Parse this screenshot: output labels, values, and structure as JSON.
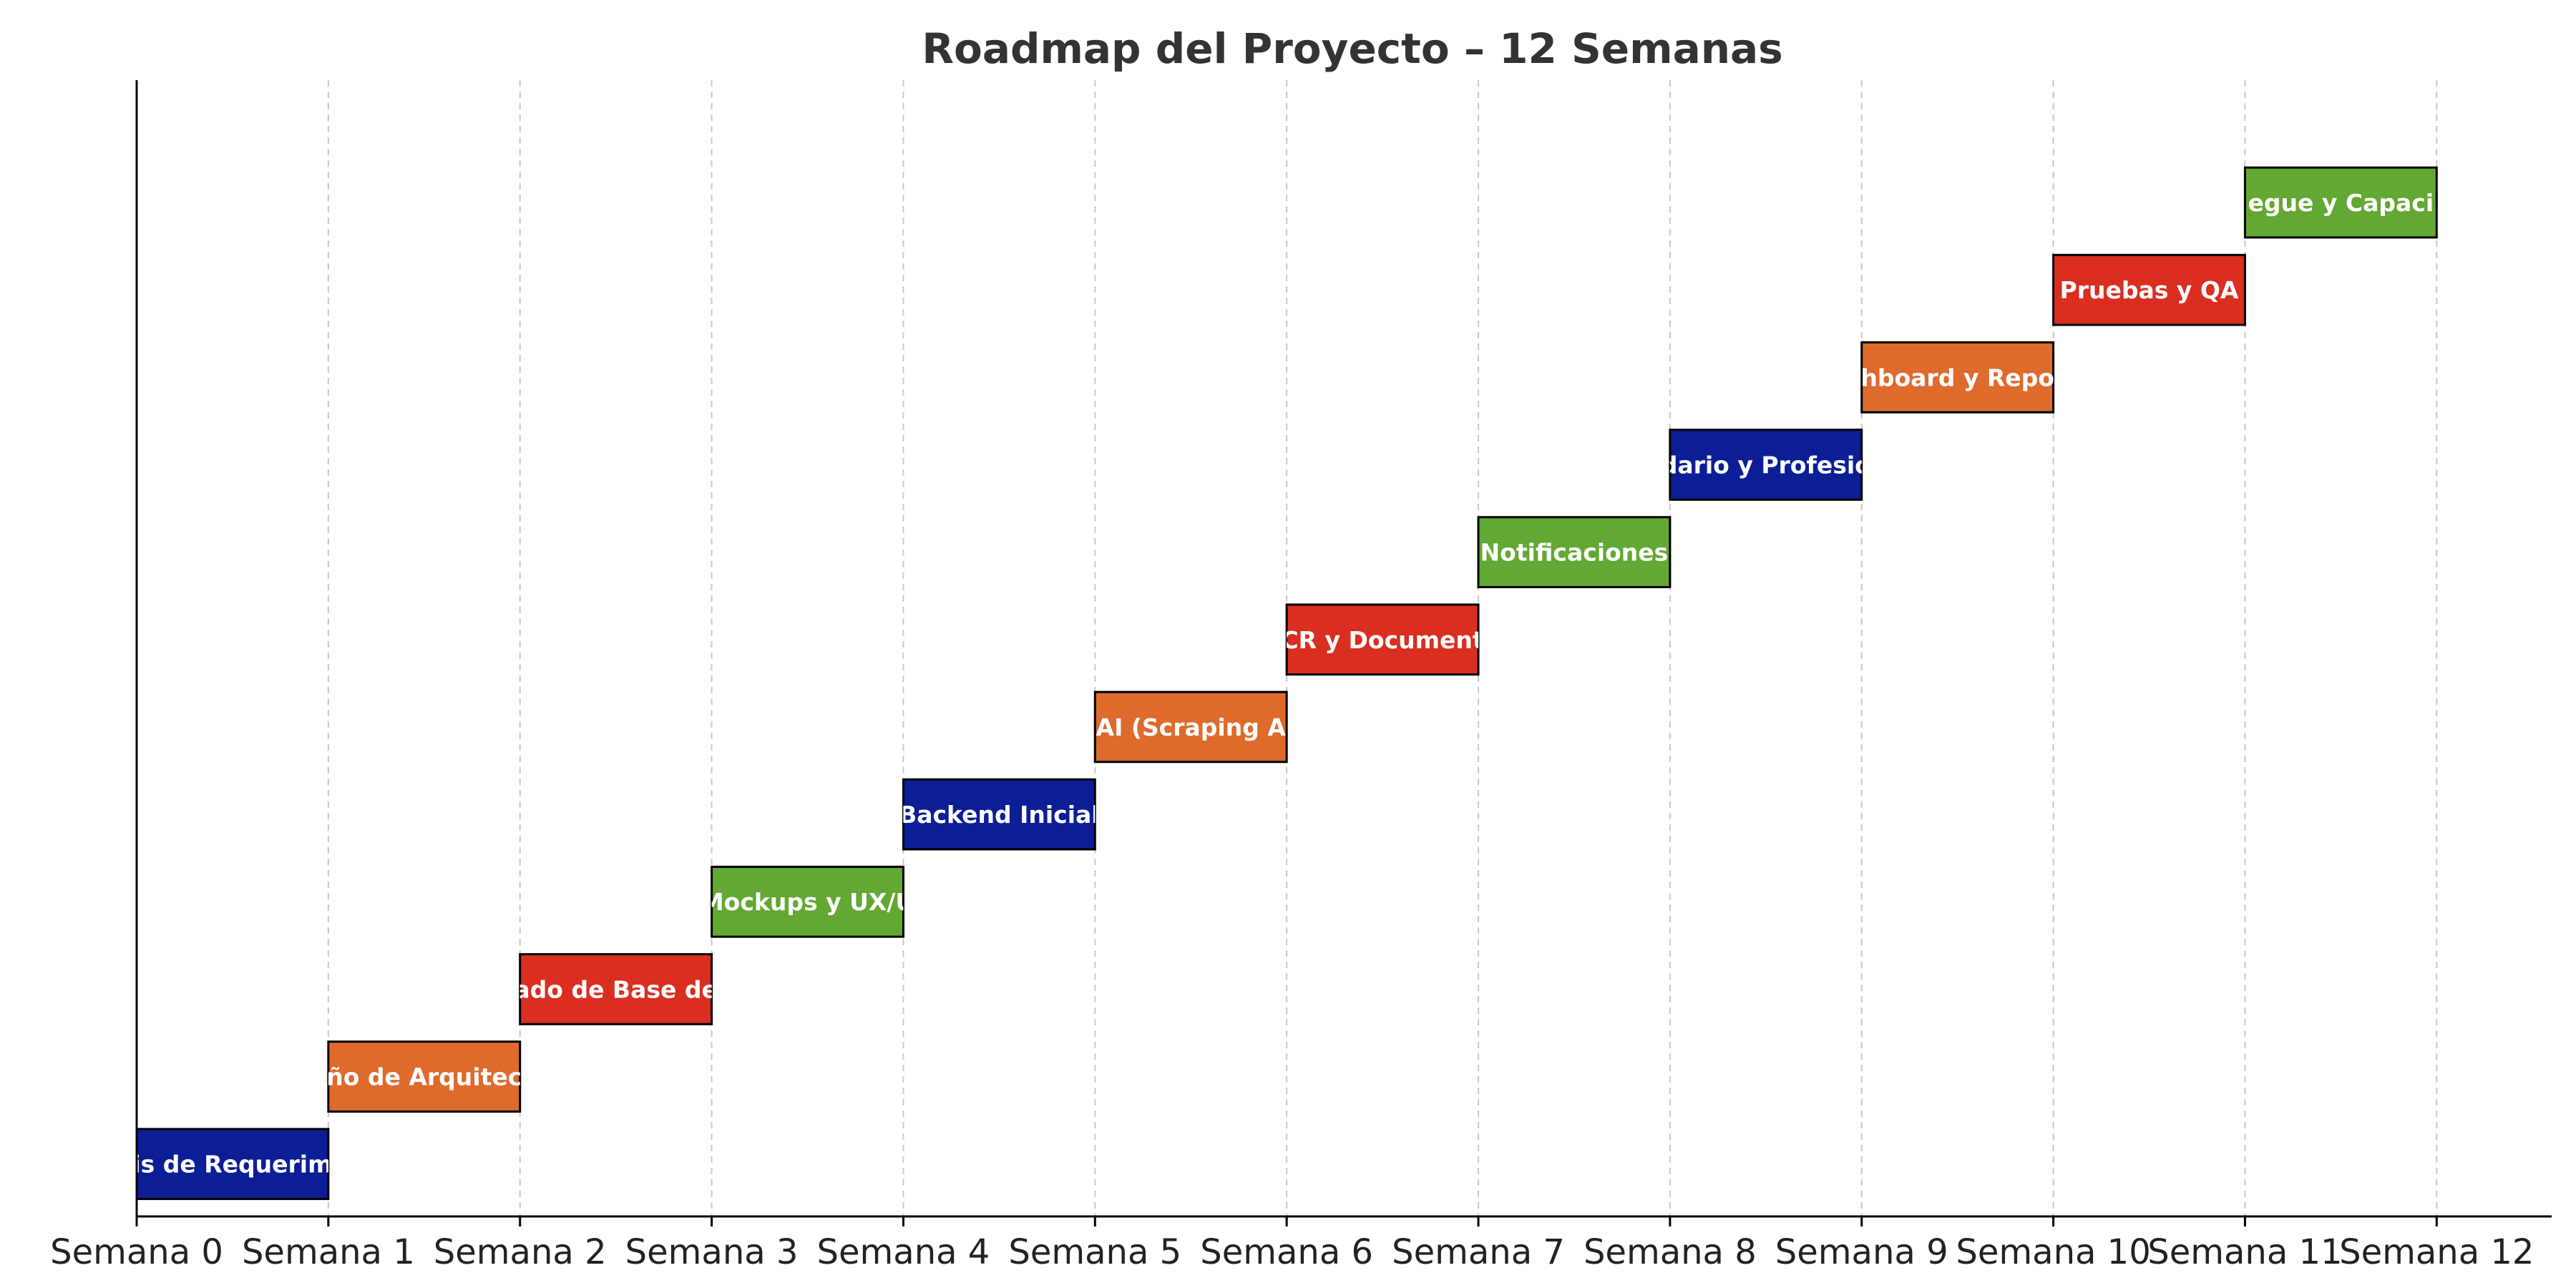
{
  "chart_data": {
    "type": "gantt",
    "title": "Roadmap del Proyecto – 12 Semanas",
    "xlabel": "",
    "ylabel": "",
    "xlim": [
      0,
      12.6
    ],
    "ylim": [
      -0.6,
      12.4
    ],
    "x_ticks": [
      {
        "value": 0,
        "label": "Semana 0"
      },
      {
        "value": 1,
        "label": "Semana 1"
      },
      {
        "value": 2,
        "label": "Semana 2"
      },
      {
        "value": 3,
        "label": "Semana 3"
      },
      {
        "value": 4,
        "label": "Semana 4"
      },
      {
        "value": 5,
        "label": "Semana 5"
      },
      {
        "value": 6,
        "label": "Semana 6"
      },
      {
        "value": 7,
        "label": "Semana 7"
      },
      {
        "value": 8,
        "label": "Semana 8"
      },
      {
        "value": 9,
        "label": "Semana 9"
      },
      {
        "value": 10,
        "label": "Semana 10"
      },
      {
        "value": 11,
        "label": "Semana 11"
      },
      {
        "value": 12,
        "label": "Semana 12"
      }
    ],
    "grid": "vertical dashed",
    "tasks": [
      {
        "label": "is de Requerim",
        "start": 0,
        "end": 1,
        "row": 0,
        "color": "#0c1e96"
      },
      {
        "label": "ño de Arquitec",
        "start": 1,
        "end": 2,
        "row": 1,
        "color": "#de6a2c"
      },
      {
        "label": "ado de Base de",
        "start": 2,
        "end": 3,
        "row": 2,
        "color": "#d92e20"
      },
      {
        "label": "Mockups y UX/U",
        "start": 3,
        "end": 4,
        "row": 3,
        "color": "#62a832"
      },
      {
        "label": "Backend Inicial",
        "start": 4,
        "end": 5,
        "row": 4,
        "color": "#0c1e96"
      },
      {
        "label": "AI (Scraping A",
        "start": 5,
        "end": 6,
        "row": 5,
        "color": "#de6a2c"
      },
      {
        "label": "CR y Document",
        "start": 6,
        "end": 7,
        "row": 6,
        "color": "#d92e20"
      },
      {
        "label": "Notificaciones",
        "start": 7,
        "end": 8,
        "row": 7,
        "color": "#62a832"
      },
      {
        "label": "dario y Profesio",
        "start": 8,
        "end": 9,
        "row": 8,
        "color": "#0c1e96"
      },
      {
        "label": "hboard y Repo",
        "start": 9,
        "end": 10,
        "row": 9,
        "color": "#de6a2c"
      },
      {
        "label": "Pruebas y QA",
        "start": 10,
        "end": 11,
        "row": 10,
        "color": "#d92e20"
      },
      {
        "label": "egue y Capaci",
        "start": 11,
        "end": 12,
        "row": 11,
        "color": "#62a832"
      }
    ]
  }
}
